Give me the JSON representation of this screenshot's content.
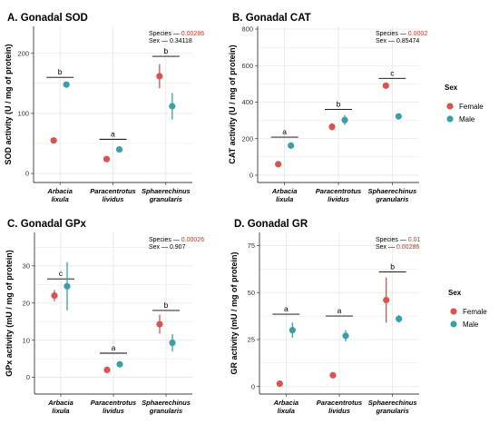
{
  "chart_data": [
    {
      "type": "scatter",
      "title": "A. Gonadal SOD",
      "ylabel": "SOD activity (U / mg of protein)",
      "ylim": [
        -15,
        245
      ],
      "yticks": [
        "0",
        "100",
        "200"
      ],
      "categories": [
        "Arbacia\nlixula",
        "Paracentrotus\nlividus",
        "Sphaerechinus\ngranularis"
      ],
      "series": [
        {
          "name": "Female",
          "values": [
            55,
            24,
            162
          ],
          "err_low": [
            55,
            24,
            142
          ],
          "err_high": [
            55,
            24,
            182
          ]
        },
        {
          "name": "Male",
          "values": [
            148,
            40,
            112
          ],
          "err_low": [
            148,
            40,
            90
          ],
          "err_high": [
            148,
            40,
            134
          ]
        }
      ],
      "letters": [
        "b",
        "a",
        "b"
      ],
      "bracket_y": [
        160,
        57,
        195
      ],
      "stats": {
        "species_label": "Species — ",
        "species_p": "0.00286",
        "sex_label": "Sex — ",
        "sex_p": "0.34118"
      }
    },
    {
      "type": "scatter",
      "title": "B. Gonadal CAT",
      "ylabel": "CAT activity (U / mg of protein)",
      "ylim": [
        -40,
        815
      ],
      "yticks": [
        "0",
        "200",
        "400",
        "600",
        "800"
      ],
      "categories": [
        "Arbacia\nlixula",
        "Paracentrotus\nlividus",
        "Sphaerechinus\ngranularis"
      ],
      "series": [
        {
          "name": "Female",
          "values": [
            60,
            265,
            490
          ],
          "err_low": [
            60,
            245,
            478
          ],
          "err_high": [
            60,
            285,
            502
          ]
        },
        {
          "name": "Male",
          "values": [
            162,
            302,
            322
          ],
          "err_low": [
            148,
            275,
            312
          ],
          "err_high": [
            176,
            329,
            332
          ]
        }
      ],
      "letters": [
        "a",
        "b",
        "c"
      ],
      "bracket_y": [
        208,
        360,
        530
      ],
      "stats": {
        "species_label": "Species — ",
        "species_p": "0.0002",
        "sex_label": "Sex — ",
        "sex_p": "0.85474"
      }
    },
    {
      "type": "scatter",
      "title": "C. Gonadal GPx",
      "ylabel": "GPx activity (mU / mg of protein)",
      "ylim": [
        -4.5,
        39
      ],
      "yticks": [
        "0",
        "10",
        "20",
        "30"
      ],
      "categories": [
        "Arbacia\nlixula",
        "Paracentrotus\nlividus",
        "Sphaerechinus\ngranularis"
      ],
      "series": [
        {
          "name": "Female",
          "values": [
            22,
            2,
            14.3
          ],
          "err_low": [
            20.5,
            2,
            11.8
          ],
          "err_high": [
            23.5,
            2,
            16.8
          ]
        },
        {
          "name": "Male",
          "values": [
            24.5,
            3.5,
            9.3
          ],
          "err_low": [
            18,
            3.5,
            7
          ],
          "err_high": [
            31,
            3.5,
            11.6
          ]
        }
      ],
      "letters": [
        "c",
        "a",
        "b"
      ],
      "bracket_y": [
        26.5,
        6.5,
        18
      ],
      "stats": {
        "species_label": "Species — ",
        "species_p": "0.00026",
        "sex_label": "Sex — ",
        "sex_p": "0.907"
      }
    },
    {
      "type": "scatter",
      "title": "D. Gonadal GR",
      "ylabel": "GR activity (mU / mg of protein)",
      "ylim": [
        -4,
        82
      ],
      "yticks": [
        "0",
        "25",
        "50",
        "75"
      ],
      "categories": [
        "Arbacia\nlixula",
        "Paracentrotus\nlividus",
        "Sphaerechinus\ngranularis"
      ],
      "series": [
        {
          "name": "Female",
          "values": [
            1.5,
            6,
            46
          ],
          "err_low": [
            1.5,
            6,
            34
          ],
          "err_high": [
            1.5,
            6,
            58
          ]
        },
        {
          "name": "Male",
          "values": [
            30,
            27,
            36
          ],
          "err_low": [
            26,
            24,
            34
          ],
          "err_high": [
            34,
            30,
            38
          ]
        }
      ],
      "letters": [
        "a",
        "a",
        "b"
      ],
      "bracket_y": [
        38.5,
        37.5,
        61
      ],
      "stats": {
        "species_label": "Species — ",
        "species_p": "0.01",
        "sex_label": "Sex — ",
        "sex_p": "0.00286"
      }
    }
  ],
  "legend": {
    "title": "Sex",
    "items": [
      {
        "label": "Female",
        "color": "#d9534f"
      },
      {
        "label": "Male",
        "color": "#3aa0a8"
      }
    ]
  },
  "colors": {
    "female": "#d9534f",
    "male": "#3aa0a8",
    "p_value": "#c0392b",
    "panel_bg": "#ffffff",
    "grid": "#e6e6e6"
  }
}
